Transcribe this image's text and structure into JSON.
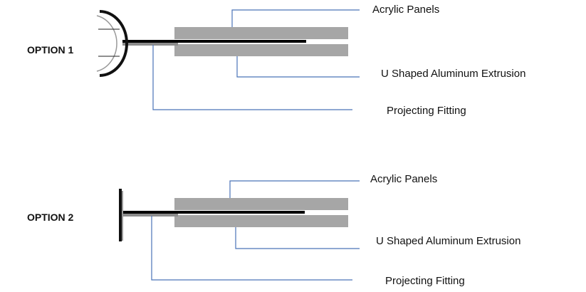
{
  "options": [
    {
      "title": "OPTION 1",
      "labels": {
        "acrylic": "Acrylic Panels",
        "extrusion": "U Shaped Aluminum Extrusion",
        "fitting": "Projecting Fitting"
      }
    },
    {
      "title": "OPTION 2",
      "labels": {
        "acrylic": "Acrylic Panels",
        "extrusion": "U Shaped Aluminum Extrusion",
        "fitting": "Projecting Fitting"
      }
    }
  ],
  "colors": {
    "leader_line": "#4a73b8",
    "panel": "#a6a6a6",
    "rod": "#000000",
    "rod_shadow": "#8c8c8c"
  }
}
